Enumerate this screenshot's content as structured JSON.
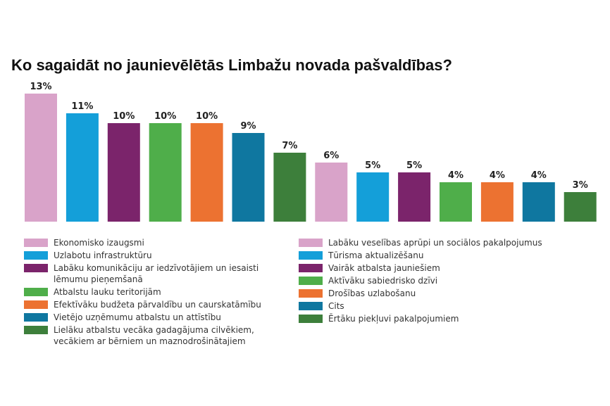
{
  "chart_data": {
    "type": "bar",
    "title": "Ko sagaidāt no jaunievēlētās Limbažu novada pašvaldības?",
    "categories": [
      "Ekonomisko izaugsmi",
      "Uzlabotu infrastruktūru",
      "Labāku komunikāciju ar iedzīvotājiem un iesaisti lēmumu pieņemšanā",
      "Atbalstu lauku teritorijām",
      "Efektīvāku budžeta pārvaldību un caurskatāmību",
      "Vietējo uzņēmumu atbalstu un attīstību",
      "Lielāku atbalstu vecāka gadagājuma cilvēkiem, vecākiem ar bērniem un maznodrošinātajiem",
      "Labāku veselības aprūpi un sociālos pakalpojumus",
      "Tūrisma aktualizēšanu",
      "Vairāk atbalsta jauniešiem",
      "Aktīvāku sabiedrisko dzīvi",
      "Drošības uzlabošanu",
      "Cits",
      "Ērtāku piekļuvi pakalpojumiem"
    ],
    "values": [
      13,
      11,
      10,
      10,
      10,
      9,
      7,
      6,
      5,
      5,
      4,
      4,
      4,
      3
    ],
    "labels": [
      "13%",
      "11%",
      "10%",
      "10%",
      "10%",
      "9%",
      "7%",
      "6%",
      "5%",
      "5%",
      "4%",
      "4%",
      "4%",
      "3%"
    ],
    "colors": [
      "#d9a3c9",
      "#149fd9",
      "#7b246b",
      "#4fae4a",
      "#ec7231",
      "#0f77a0",
      "#3d7f3b",
      "#d9a3c9",
      "#149fd9",
      "#7b246b",
      "#4fae4a",
      "#ec7231",
      "#0f77a0",
      "#3d7f3b"
    ],
    "ylim": [
      0,
      13
    ],
    "grid": false,
    "legend_position": "bottom"
  }
}
